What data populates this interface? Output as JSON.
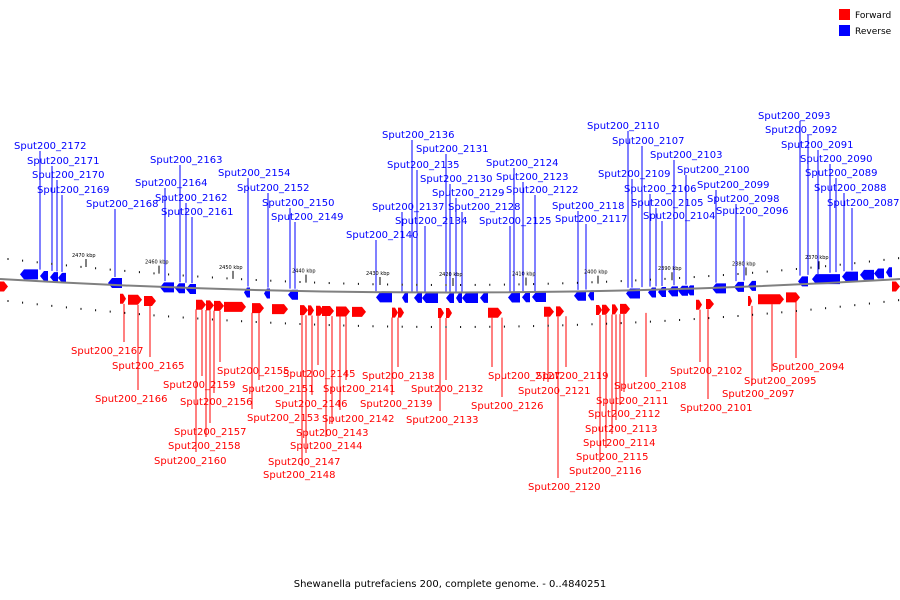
{
  "legend": {
    "forward": {
      "label": "Forward",
      "color": "#ff0000"
    },
    "reverse": {
      "label": "Reverse",
      "color": "#0000ff"
    }
  },
  "caption": "Shewanella putrefaciens 200, complete genome. - 0..4840251",
  "scale_ticks": [
    "2470 kbp",
    "2460 kbp",
    "2450 kbp",
    "2440 kbp",
    "2430 kbp",
    "2420 kbp",
    "2410 kbp",
    "2400 kbp",
    "2390 kbp",
    "2380 kbp",
    "2370 kbp"
  ],
  "reverse_genes": [
    "Sput200_2172",
    "Sput200_2171",
    "Sput200_2170",
    "Sput200_2169",
    "Sput200_2168",
    "Sput200_2164",
    "Sput200_2163",
    "Sput200_2162",
    "Sput200_2161",
    "Sput200_2154",
    "Sput200_2152",
    "Sput200_2150",
    "Sput200_2149",
    "Sput200_2140",
    "Sput200_2137",
    "Sput200_2136",
    "Sput200_2135",
    "Sput200_2134",
    "Sput200_2131",
    "Sput200_2130",
    "Sput200_2129",
    "Sput200_2128",
    "Sput200_2125",
    "Sput200_2124",
    "Sput200_2123",
    "Sput200_2122",
    "Sput200_2118",
    "Sput200_2117",
    "Sput200_2110",
    "Sput200_2109",
    "Sput200_2107",
    "Sput200_2106",
    "Sput200_2105",
    "Sput200_2104",
    "Sput200_2103",
    "Sput200_2100",
    "Sput200_2099",
    "Sput200_2098",
    "Sput200_2096",
    "Sput200_2093",
    "Sput200_2092",
    "Sput200_2091",
    "Sput200_2090",
    "Sput200_2089",
    "Sput200_2088",
    "Sput200_2087"
  ],
  "forward_genes": [
    "Sput200_2167",
    "Sput200_2166",
    "Sput200_2165",
    "Sput200_2160",
    "Sput200_2159",
    "Sput200_2158",
    "Sput200_2157",
    "Sput200_2156",
    "Sput200_2155",
    "Sput200_2153",
    "Sput200_2151",
    "Sput200_2148",
    "Sput200_2147",
    "Sput200_2146",
    "Sput200_2145",
    "Sput200_2144",
    "Sput200_2143",
    "Sput200_2142",
    "Sput200_2141",
    "Sput200_2139",
    "Sput200_2138",
    "Sput200_2133",
    "Sput200_2132",
    "Sput200_2127",
    "Sput200_2126",
    "Sput200_2121",
    "Sput200_2120",
    "Sput200_2119",
    "Sput200_2116",
    "Sput200_2115",
    "Sput200_2114",
    "Sput200_2113",
    "Sput200_2112",
    "Sput200_2111",
    "Sput200_2108",
    "Sput200_2102",
    "Sput200_2101",
    "Sput200_2097",
    "Sput200_2095",
    "Sput200_2094"
  ]
}
